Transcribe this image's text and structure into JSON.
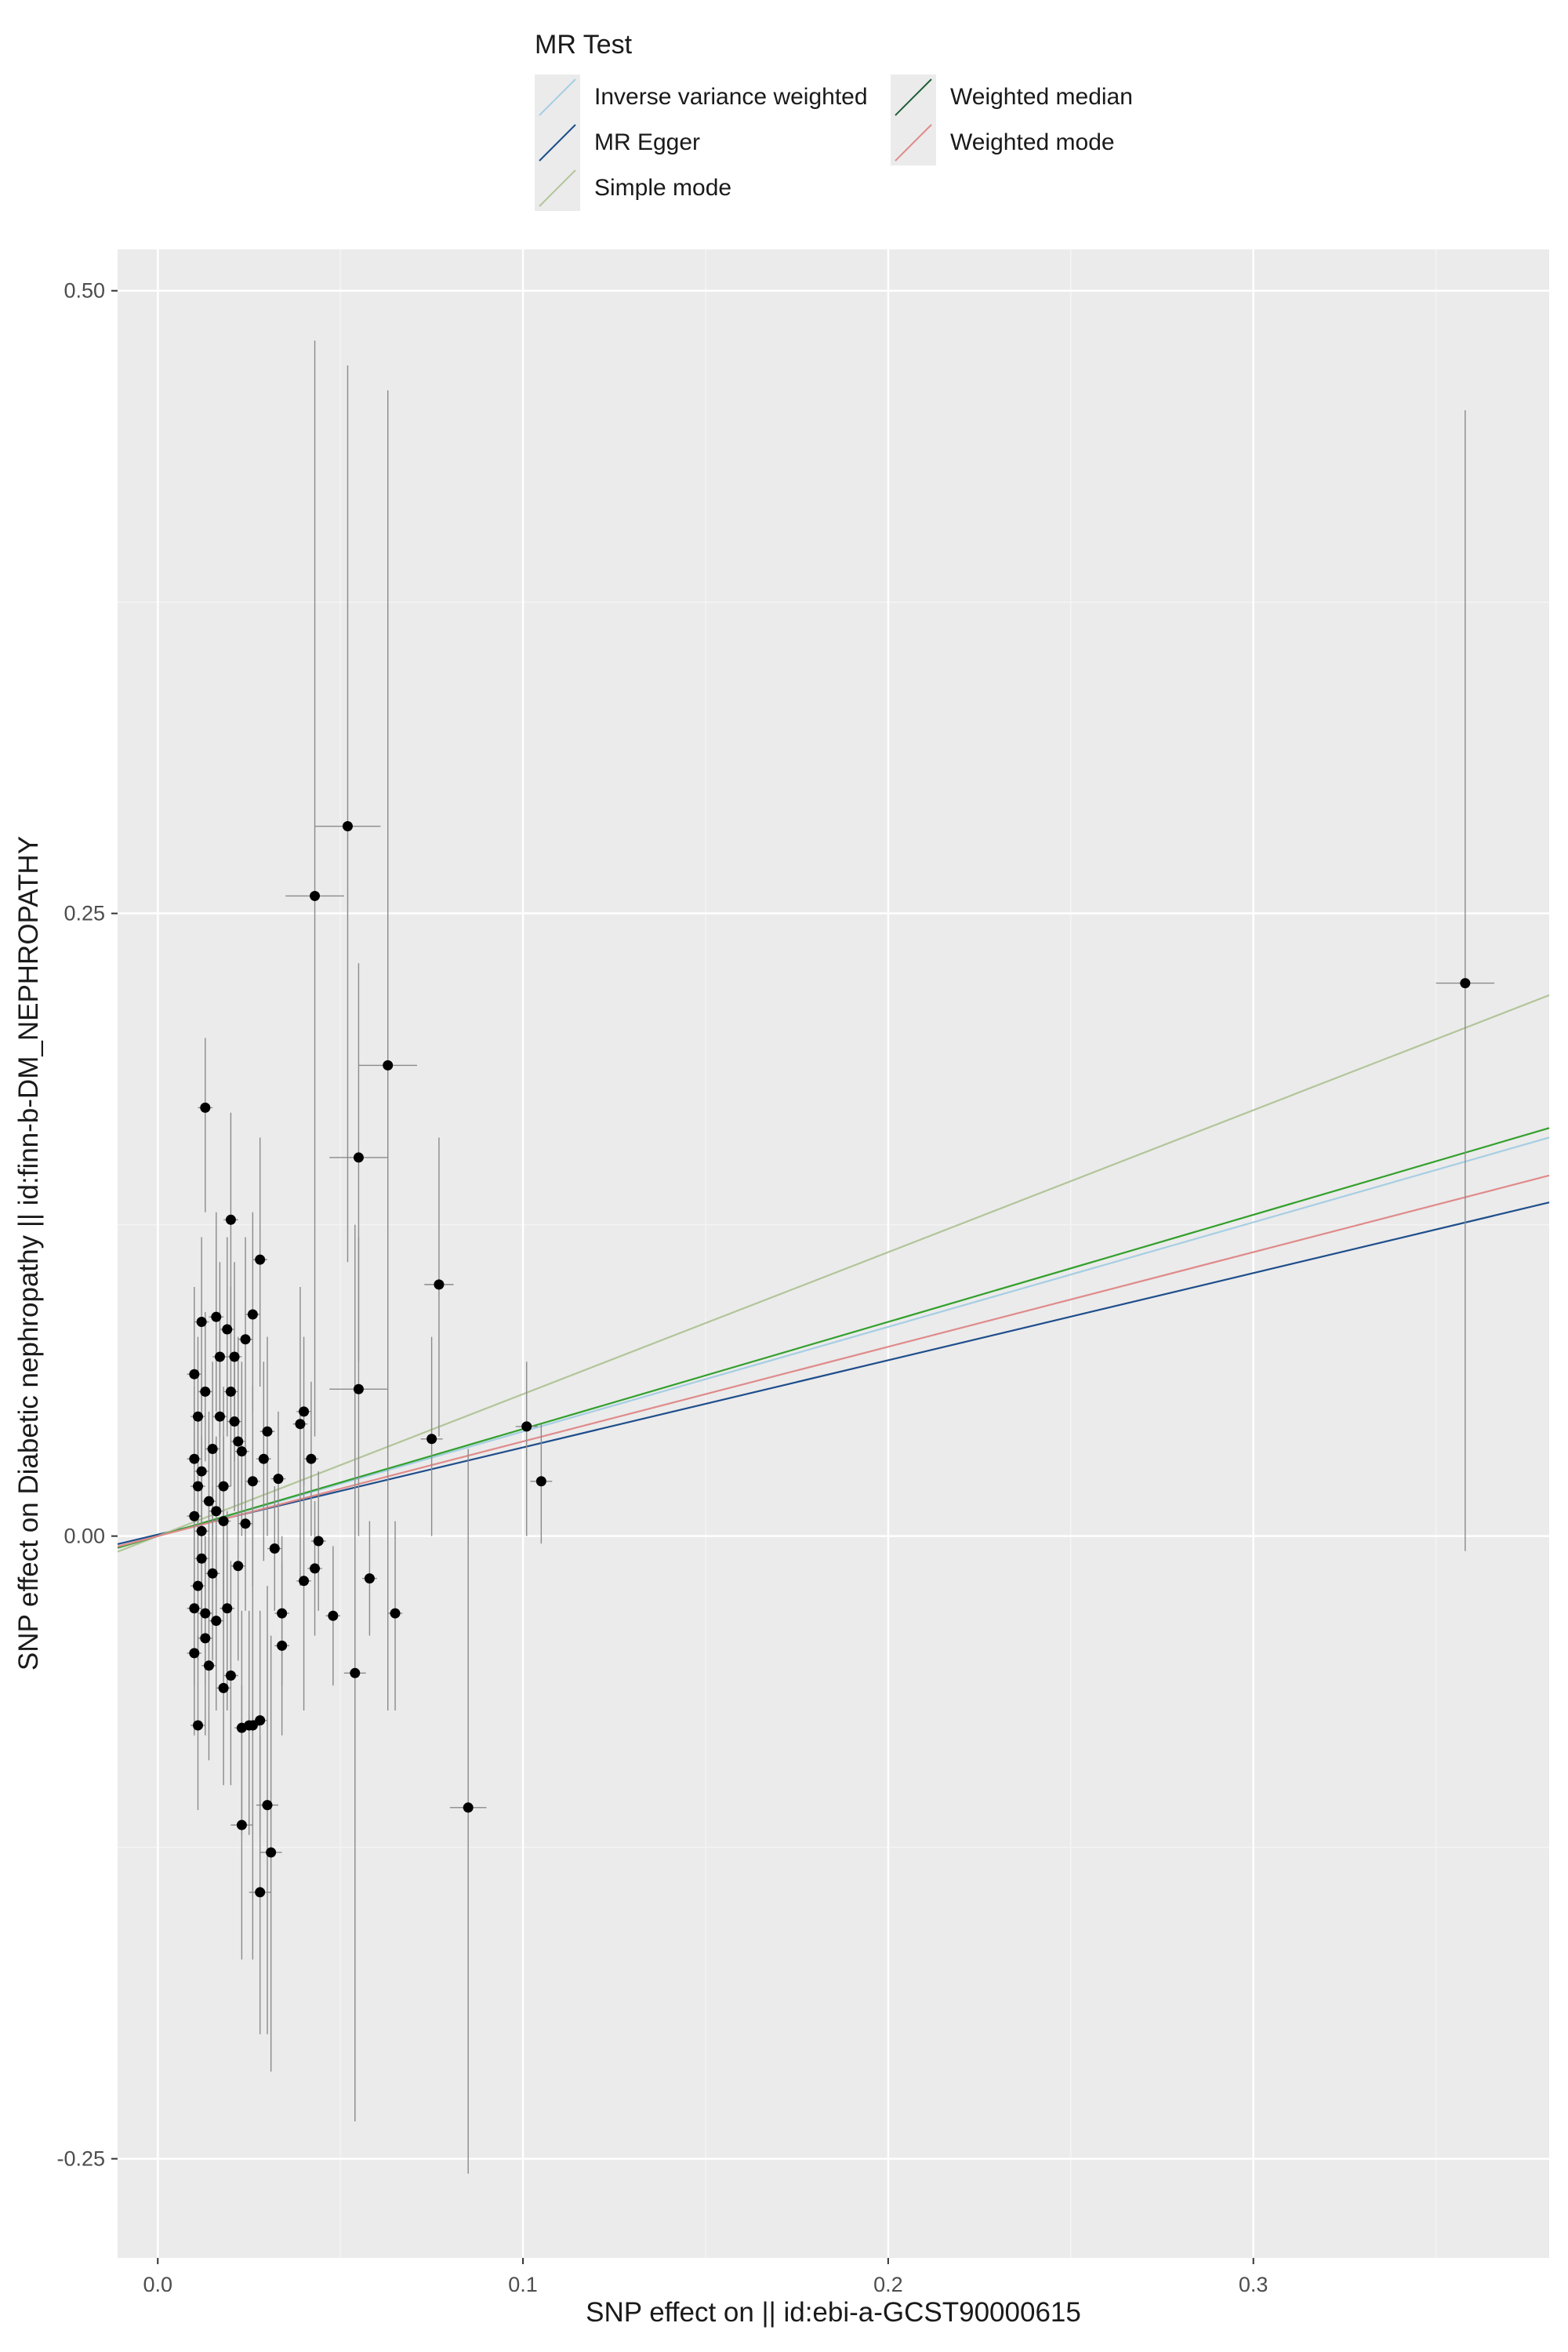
{
  "legend": {
    "title": "MR Test",
    "items": [
      {
        "label": "Inverse variance weighted",
        "color": "#a6cee3"
      },
      {
        "label": "MR Egger",
        "color": "#1f4e8c"
      },
      {
        "label": "Simple mode",
        "color": "#b2c59a"
      },
      {
        "label": "Weighted median",
        "color": "#33a02c"
      },
      {
        "label": "Weighted mode",
        "color": "#e08a8a"
      }
    ]
  },
  "chart_data": {
    "type": "scatter",
    "title": "",
    "xlabel": "SNP effect on  || id:ebi-a-GCST90000615",
    "ylabel": "SNP effect on Diabetic nephropathy || id:finn-b-DM_NEPHROPATHY",
    "xlim": [
      -0.011,
      0.381
    ],
    "ylim": [
      -0.2898,
      0.5166
    ],
    "x_ticks": [
      0.0,
      0.1,
      0.2,
      0.3
    ],
    "x_tick_labels": [
      "0.0",
      "0.1",
      "0.2",
      "0.3"
    ],
    "y_ticks": [
      -0.25,
      0.0,
      0.25,
      0.5
    ],
    "y_tick_labels": [
      "-0.25",
      "0.00",
      "0.25",
      "0.50"
    ],
    "grid": true,
    "legend_position": "top",
    "regression_lines": [
      {
        "name": "Inverse variance weighted",
        "intercept": 0.0,
        "slope": 0.42,
        "color": "#a6cee3"
      },
      {
        "name": "MR Egger",
        "intercept": 0.0006,
        "slope": 0.35,
        "color": "#1f4e8c"
      },
      {
        "name": "Simple mode",
        "intercept": 0.0,
        "slope": 0.57,
        "color": "#b2c59a"
      },
      {
        "name": "Weighted median",
        "intercept": 0.0,
        "slope": 0.43,
        "color": "#33a02c"
      },
      {
        "name": "Weighted mode",
        "intercept": 0.0,
        "slope": 0.38,
        "color": "#e08a8a"
      }
    ],
    "points": [
      {
        "x": 0.358,
        "y": 0.222,
        "x_err": 0.008,
        "y_lo": -0.006,
        "y_hi": 0.452
      },
      {
        "x": 0.052,
        "y": 0.285,
        "x_err": 0.009,
        "y_lo": 0.11,
        "y_hi": 0.47
      },
      {
        "x": 0.043,
        "y": 0.257,
        "x_err": 0.008,
        "y_lo": 0.04,
        "y_hi": 0.48
      },
      {
        "x": 0.063,
        "y": 0.189,
        "x_err": 0.008,
        "y_lo": -0.07,
        "y_hi": 0.46
      },
      {
        "x": 0.055,
        "y": 0.152,
        "x_err": 0.008,
        "y_lo": 0.07,
        "y_hi": 0.23
      },
      {
        "x": 0.077,
        "y": 0.101,
        "x_err": 0.004,
        "y_lo": 0.04,
        "y_hi": 0.16
      },
      {
        "x": 0.055,
        "y": 0.059,
        "x_err": 0.008,
        "y_lo": 0.0,
        "y_hi": 0.12
      },
      {
        "x": 0.075,
        "y": 0.039,
        "x_err": 0.003,
        "y_lo": 0.0,
        "y_hi": 0.08
      },
      {
        "x": 0.101,
        "y": 0.044,
        "x_err": 0.003,
        "y_lo": 0.0,
        "y_hi": 0.07
      },
      {
        "x": 0.105,
        "y": 0.022,
        "x_err": 0.003,
        "y_lo": -0.003,
        "y_hi": 0.045
      },
      {
        "x": 0.085,
        "y": -0.109,
        "x_err": 0.005,
        "y_lo": -0.256,
        "y_hi": 0.035
      },
      {
        "x": 0.054,
        "y": -0.055,
        "x_err": 0.003,
        "y_lo": -0.235,
        "y_hi": 0.125
      },
      {
        "x": 0.065,
        "y": -0.031,
        "x_err": 0.002,
        "y_lo": -0.07,
        "y_hi": 0.006
      },
      {
        "x": 0.058,
        "y": -0.017,
        "x_err": 0.002,
        "y_lo": -0.04,
        "y_hi": 0.006
      },
      {
        "x": 0.048,
        "y": -0.032,
        "x_err": 0.002,
        "y_lo": -0.06,
        "y_hi": -0.004
      },
      {
        "x": 0.044,
        "y": -0.002,
        "x_err": 0.002,
        "y_lo": -0.03,
        "y_hi": 0.026
      },
      {
        "x": 0.043,
        "y": -0.013,
        "x_err": 0.002,
        "y_lo": -0.04,
        "y_hi": 0.014
      },
      {
        "x": 0.04,
        "y": 0.05,
        "x_err": 0.002,
        "y_lo": 0.02,
        "y_hi": 0.08
      },
      {
        "x": 0.042,
        "y": 0.031,
        "x_err": 0.002,
        "y_lo": 0.0,
        "y_hi": 0.062
      },
      {
        "x": 0.039,
        "y": 0.045,
        "x_err": 0.002,
        "y_lo": -0.02,
        "y_hi": 0.1
      },
      {
        "x": 0.04,
        "y": -0.018,
        "x_err": 0.002,
        "y_lo": -0.07,
        "y_hi": 0.03
      },
      {
        "x": 0.033,
        "y": 0.023,
        "x_err": 0.002,
        "y_lo": -0.005,
        "y_hi": 0.05
      },
      {
        "x": 0.034,
        "y": -0.031,
        "x_err": 0.002,
        "y_lo": -0.06,
        "y_hi": 0.0
      },
      {
        "x": 0.032,
        "y": -0.005,
        "x_err": 0.002,
        "y_lo": -0.03,
        "y_hi": 0.02
      },
      {
        "x": 0.034,
        "y": -0.044,
        "x_err": 0.002,
        "y_lo": -0.08,
        "y_hi": -0.01
      },
      {
        "x": 0.03,
        "y": -0.108,
        "x_err": 0.003,
        "y_lo": -0.2,
        "y_hi": -0.02
      },
      {
        "x": 0.031,
        "y": -0.127,
        "x_err": 0.003,
        "y_lo": -0.215,
        "y_hi": -0.04
      },
      {
        "x": 0.028,
        "y": -0.143,
        "x_err": 0.003,
        "y_lo": -0.2,
        "y_hi": -0.08
      },
      {
        "x": 0.026,
        "y": -0.076,
        "x_err": 0.002,
        "y_lo": -0.17,
        "y_hi": 0.02
      },
      {
        "x": 0.028,
        "y": -0.074,
        "x_err": 0.002,
        "y_lo": -0.12,
        "y_hi": -0.03
      },
      {
        "x": 0.023,
        "y": -0.116,
        "x_err": 0.003,
        "y_lo": -0.17,
        "y_hi": -0.06
      },
      {
        "x": 0.023,
        "y": -0.077,
        "x_err": 0.002,
        "y_lo": -0.12,
        "y_hi": -0.03
      },
      {
        "x": 0.025,
        "y": -0.076,
        "x_err": 0.002,
        "y_lo": -0.12,
        "y_hi": -0.03
      },
      {
        "x": 0.028,
        "y": 0.111,
        "x_err": 0.002,
        "y_lo": 0.06,
        "y_hi": 0.16
      },
      {
        "x": 0.02,
        "y": 0.127,
        "x_err": 0.002,
        "y_lo": 0.08,
        "y_hi": 0.17
      },
      {
        "x": 0.013,
        "y": 0.172,
        "x_err": 0.002,
        "y_lo": 0.13,
        "y_hi": 0.2
      },
      {
        "x": 0.024,
        "y": 0.079,
        "x_err": 0.002,
        "y_lo": 0.04,
        "y_hi": 0.12
      },
      {
        "x": 0.026,
        "y": 0.089,
        "x_err": 0.002,
        "y_lo": 0.05,
        "y_hi": 0.13
      },
      {
        "x": 0.019,
        "y": 0.083,
        "x_err": 0.002,
        "y_lo": 0.04,
        "y_hi": 0.12
      },
      {
        "x": 0.021,
        "y": 0.072,
        "x_err": 0.002,
        "y_lo": 0.03,
        "y_hi": 0.11
      },
      {
        "x": 0.03,
        "y": 0.042,
        "x_err": 0.002,
        "y_lo": 0.0,
        "y_hi": 0.08
      },
      {
        "x": 0.029,
        "y": 0.031,
        "x_err": 0.002,
        "y_lo": -0.01,
        "y_hi": 0.07
      },
      {
        "x": 0.026,
        "y": 0.022,
        "x_err": 0.002,
        "y_lo": -0.02,
        "y_hi": 0.06
      },
      {
        "x": 0.024,
        "y": 0.005,
        "x_err": 0.002,
        "y_lo": -0.03,
        "y_hi": 0.04
      },
      {
        "x": 0.022,
        "y": -0.012,
        "x_err": 0.002,
        "y_lo": -0.05,
        "y_hi": 0.03
      },
      {
        "x": 0.02,
        "y": -0.056,
        "x_err": 0.002,
        "y_lo": -0.1,
        "y_hi": -0.01
      },
      {
        "x": 0.018,
        "y": -0.061,
        "x_err": 0.002,
        "y_lo": -0.1,
        "y_hi": -0.02
      },
      {
        "x": 0.017,
        "y": 0.048,
        "x_err": 0.002,
        "y_lo": 0.01,
        "y_hi": 0.09
      },
      {
        "x": 0.016,
        "y": 0.088,
        "x_err": 0.002,
        "y_lo": 0.05,
        "y_hi": 0.13
      },
      {
        "x": 0.012,
        "y": 0.086,
        "x_err": 0.002,
        "y_lo": 0.05,
        "y_hi": 0.12
      },
      {
        "x": 0.011,
        "y": -0.076,
        "x_err": 0.002,
        "y_lo": -0.11,
        "y_hi": -0.04
      },
      {
        "x": 0.01,
        "y": 0.065,
        "x_err": 0.002,
        "y_lo": 0.03,
        "y_hi": 0.1
      },
      {
        "x": 0.015,
        "y": 0.035,
        "x_err": 0.002,
        "y_lo": 0.0,
        "y_hi": 0.07
      },
      {
        "x": 0.018,
        "y": 0.02,
        "x_err": 0.002,
        "y_lo": -0.02,
        "y_hi": 0.06
      },
      {
        "x": 0.014,
        "y": 0.014,
        "x_err": 0.002,
        "y_lo": -0.02,
        "y_hi": 0.05
      },
      {
        "x": 0.012,
        "y": 0.002,
        "x_err": 0.002,
        "y_lo": -0.03,
        "y_hi": 0.04
      },
      {
        "x": 0.011,
        "y": -0.02,
        "x_err": 0.002,
        "y_lo": -0.05,
        "y_hi": 0.01
      },
      {
        "x": 0.013,
        "y": -0.041,
        "x_err": 0.002,
        "y_lo": -0.08,
        "y_hi": 0.0
      },
      {
        "x": 0.016,
        "y": -0.034,
        "x_err": 0.002,
        "y_lo": -0.07,
        "y_hi": 0.0
      },
      {
        "x": 0.019,
        "y": -0.029,
        "x_err": 0.002,
        "y_lo": -0.07,
        "y_hi": 0.01
      },
      {
        "x": 0.021,
        "y": 0.046,
        "x_err": 0.002,
        "y_lo": 0.01,
        "y_hi": 0.08
      },
      {
        "x": 0.023,
        "y": 0.034,
        "x_err": 0.002,
        "y_lo": 0.0,
        "y_hi": 0.07
      },
      {
        "x": 0.01,
        "y": 0.031,
        "x_err": 0.002,
        "y_lo": 0.0,
        "y_hi": 0.06
      },
      {
        "x": 0.011,
        "y": 0.048,
        "x_err": 0.002,
        "y_lo": 0.02,
        "y_hi": 0.08
      },
      {
        "x": 0.012,
        "y": -0.009,
        "x_err": 0.002,
        "y_lo": -0.04,
        "y_hi": 0.02
      },
      {
        "x": 0.01,
        "y": -0.047,
        "x_err": 0.002,
        "y_lo": -0.08,
        "y_hi": -0.01
      },
      {
        "x": 0.014,
        "y": -0.052,
        "x_err": 0.002,
        "y_lo": -0.09,
        "y_hi": -0.02
      },
      {
        "x": 0.013,
        "y": 0.058,
        "x_err": 0.002,
        "y_lo": 0.03,
        "y_hi": 0.09
      },
      {
        "x": 0.017,
        "y": 0.072,
        "x_err": 0.002,
        "y_lo": 0.04,
        "y_hi": 0.11
      },
      {
        "x": 0.015,
        "y": -0.015,
        "x_err": 0.002,
        "y_lo": -0.05,
        "y_hi": 0.02
      },
      {
        "x": 0.011,
        "y": 0.02,
        "x_err": 0.002,
        "y_lo": -0.01,
        "y_hi": 0.05
      },
      {
        "x": 0.01,
        "y": 0.008,
        "x_err": 0.002,
        "y_lo": -0.02,
        "y_hi": 0.04
      },
      {
        "x": 0.012,
        "y": 0.026,
        "x_err": 0.002,
        "y_lo": 0.0,
        "y_hi": 0.06
      },
      {
        "x": 0.018,
        "y": 0.006,
        "x_err": 0.002,
        "y_lo": -0.03,
        "y_hi": 0.04
      },
      {
        "x": 0.02,
        "y": 0.058,
        "x_err": 0.002,
        "y_lo": 0.02,
        "y_hi": 0.1
      },
      {
        "x": 0.022,
        "y": 0.038,
        "x_err": 0.002,
        "y_lo": 0.0,
        "y_hi": 0.08
      },
      {
        "x": 0.016,
        "y": 0.01,
        "x_err": 0.002,
        "y_lo": -0.02,
        "y_hi": 0.04
      },
      {
        "x": 0.013,
        "y": -0.031,
        "x_err": 0.002,
        "y_lo": -0.06,
        "y_hi": 0.0
      },
      {
        "x": 0.01,
        "y": -0.029,
        "x_err": 0.002,
        "y_lo": -0.06,
        "y_hi": 0.0
      }
    ]
  }
}
